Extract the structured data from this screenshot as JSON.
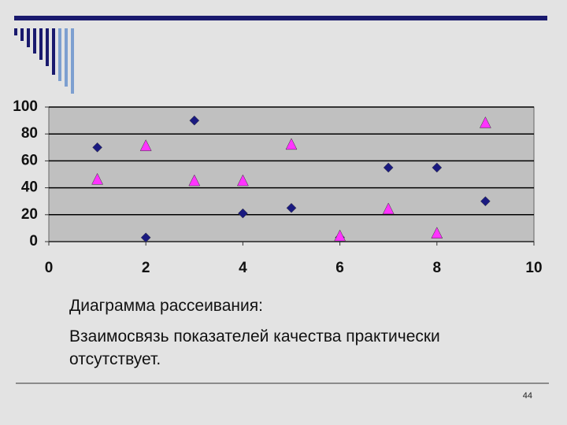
{
  "chart_data": {
    "type": "scatter",
    "x": [
      1,
      2,
      3,
      4,
      5,
      6,
      7,
      8,
      9
    ],
    "series": [
      {
        "color": "#1a1a80",
        "marker": "diamond",
        "values": [
          70,
          3,
          90,
          21,
          25,
          3,
          55,
          55,
          30
        ]
      },
      {
        "color": "#ff33ff",
        "marker": "triangle",
        "values": [
          46,
          71,
          45,
          45,
          72,
          4,
          24,
          6,
          88
        ]
      }
    ],
    "xlim": [
      0,
      10
    ],
    "xticks": [
      0,
      2,
      4,
      6,
      8,
      10
    ],
    "ylim": [
      0,
      100
    ],
    "yticks": [
      0,
      20,
      40,
      60,
      80,
      100
    ],
    "grid": true
  },
  "caption": {
    "lines": [
      "Диаграмма рассеивания:",
      "Взаимосвязь показателей качества практически",
      "отсутствует."
    ]
  },
  "page_number": "44"
}
